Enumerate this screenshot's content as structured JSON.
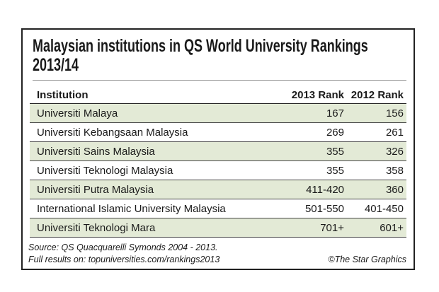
{
  "title": "Malaysian institutions in QS World University Rankings 2013/14",
  "table": {
    "columns": [
      "Institution",
      "2013 Rank",
      "2012 Rank"
    ],
    "rows": [
      [
        "Universiti Malaya",
        "167",
        "156"
      ],
      [
        "Universiti Kebangsaan Malaysia",
        "269",
        "261"
      ],
      [
        "Universiti Sains Malaysia",
        "355",
        "326"
      ],
      [
        "Universiti Teknologi Malaysia",
        "355",
        "358"
      ],
      [
        "Universiti Putra Malaysia",
        "411-420",
        "360"
      ],
      [
        "International Islamic University Malaysia",
        "501-550",
        "401-450"
      ],
      [
        "Universiti Teknologi Mara",
        "701+",
        "601+"
      ]
    ]
  },
  "footer": {
    "source": [
      "Source: QS Quacquarelli Symonds 2004 - 2013.",
      "Full results on: topuniversities.com/rankings2013"
    ],
    "credit": "©The Star Graphics"
  }
}
